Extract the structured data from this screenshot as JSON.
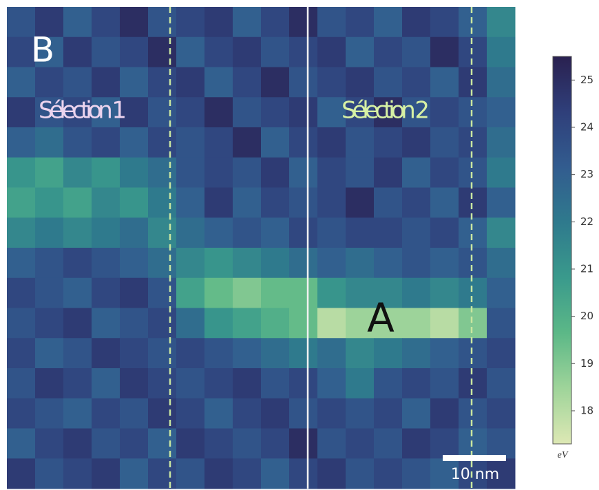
{
  "chart_data": {
    "type": "heatmap",
    "panel_label": "B",
    "annotations": [
      "Sélection 1",
      "Sélection 2",
      "A"
    ],
    "scale_bar_label": "10 nm",
    "colorbar_label": "eV",
    "zlim": [
      17.3,
      25.5
    ],
    "zticks": [
      18,
      19,
      20,
      21,
      22,
      23,
      24,
      25
    ],
    "colormap": [
      "#dde8b4",
      "#9fd49a",
      "#5cb887",
      "#3a9a8c",
      "#2f7a8d",
      "#325c8f",
      "#2f3f7a",
      "#2a2150"
    ],
    "values": [
      [
        23.5,
        24.5,
        23,
        24,
        25,
        23.5,
        24,
        24.5,
        23,
        24,
        25,
        23.5,
        24,
        23,
        24.5,
        24,
        23,
        21.5
      ],
      [
        24,
        23,
        24.5,
        23.5,
        24,
        25,
        23,
        24,
        24.5,
        23.5,
        24,
        24.5,
        23,
        24,
        23.5,
        25,
        24,
        22
      ],
      [
        23,
        24,
        23.5,
        24.5,
        23,
        24,
        24.5,
        23,
        24,
        25,
        23.5,
        24,
        24.5,
        23.5,
        24,
        23,
        24.5,
        22.5
      ],
      [
        24.5,
        23.5,
        24,
        23,
        24.5,
        23.5,
        24,
        25,
        23.5,
        24,
        24.5,
        23,
        24,
        25,
        23.5,
        24,
        23.5,
        23
      ],
      [
        23,
        22.5,
        23.5,
        24,
        23,
        24,
        23.5,
        24,
        25,
        23,
        24,
        24.5,
        23.5,
        24,
        24.5,
        23.5,
        24,
        22.5
      ],
      [
        21,
        20.5,
        21.5,
        21,
        22,
        22.5,
        23.5,
        24,
        23.5,
        24.5,
        23,
        24,
        23.5,
        24.5,
        23,
        24,
        23.5,
        22
      ],
      [
        20.5,
        21,
        20.5,
        21.5,
        21,
        22,
        23,
        24.5,
        23,
        24,
        23.5,
        24,
        25,
        23.5,
        24,
        23,
        24.5,
        23
      ],
      [
        21.5,
        22,
        21.5,
        22,
        22.5,
        21.5,
        22.5,
        23,
        23.5,
        23,
        24,
        23.5,
        24,
        24,
        23.5,
        24,
        23,
        21.5
      ],
      [
        23,
        23.5,
        24,
        23.5,
        23,
        22.5,
        21.5,
        21,
        21.5,
        22,
        22.5,
        23,
        22.5,
        23,
        23.5,
        23,
        23.5,
        22.5
      ],
      [
        24,
        23.5,
        23,
        24,
        24.5,
        23.5,
        20.5,
        19.5,
        19,
        19.5,
        19.5,
        21,
        21.5,
        21.5,
        22,
        21.5,
        22,
        23
      ],
      [
        23.5,
        24,
        24.5,
        23,
        23.5,
        24,
        22.5,
        21,
        20.5,
        20,
        19.5,
        18,
        18.5,
        18.5,
        18.5,
        18,
        19,
        23.5
      ],
      [
        24,
        23,
        23.5,
        24.5,
        24,
        23.5,
        24,
        23.5,
        23,
        22.5,
        22,
        22.5,
        21.5,
        22,
        22.5,
        23,
        23.5,
        24
      ],
      [
        23.5,
        24.5,
        24,
        23,
        24.5,
        24,
        23.5,
        24,
        24.5,
        23.5,
        24,
        23,
        22,
        23.5,
        24,
        23.5,
        24.5,
        23.5
      ],
      [
        24,
        23.5,
        23,
        24,
        23.5,
        24.5,
        24,
        23,
        24,
        24.5,
        23.5,
        24,
        23.5,
        24,
        23,
        24.5,
        23.5,
        24
      ],
      [
        23,
        24,
        24.5,
        23.5,
        24,
        23,
        24.5,
        24,
        23.5,
        24,
        25,
        23.5,
        24,
        23.5,
        24.5,
        24,
        23,
        23.5
      ],
      [
        24.5,
        23.5,
        24,
        24.5,
        23,
        24,
        23.5,
        24.5,
        24,
        23,
        24,
        24.5,
        23.5,
        24,
        23.5,
        23,
        24,
        24.5
      ]
    ]
  }
}
